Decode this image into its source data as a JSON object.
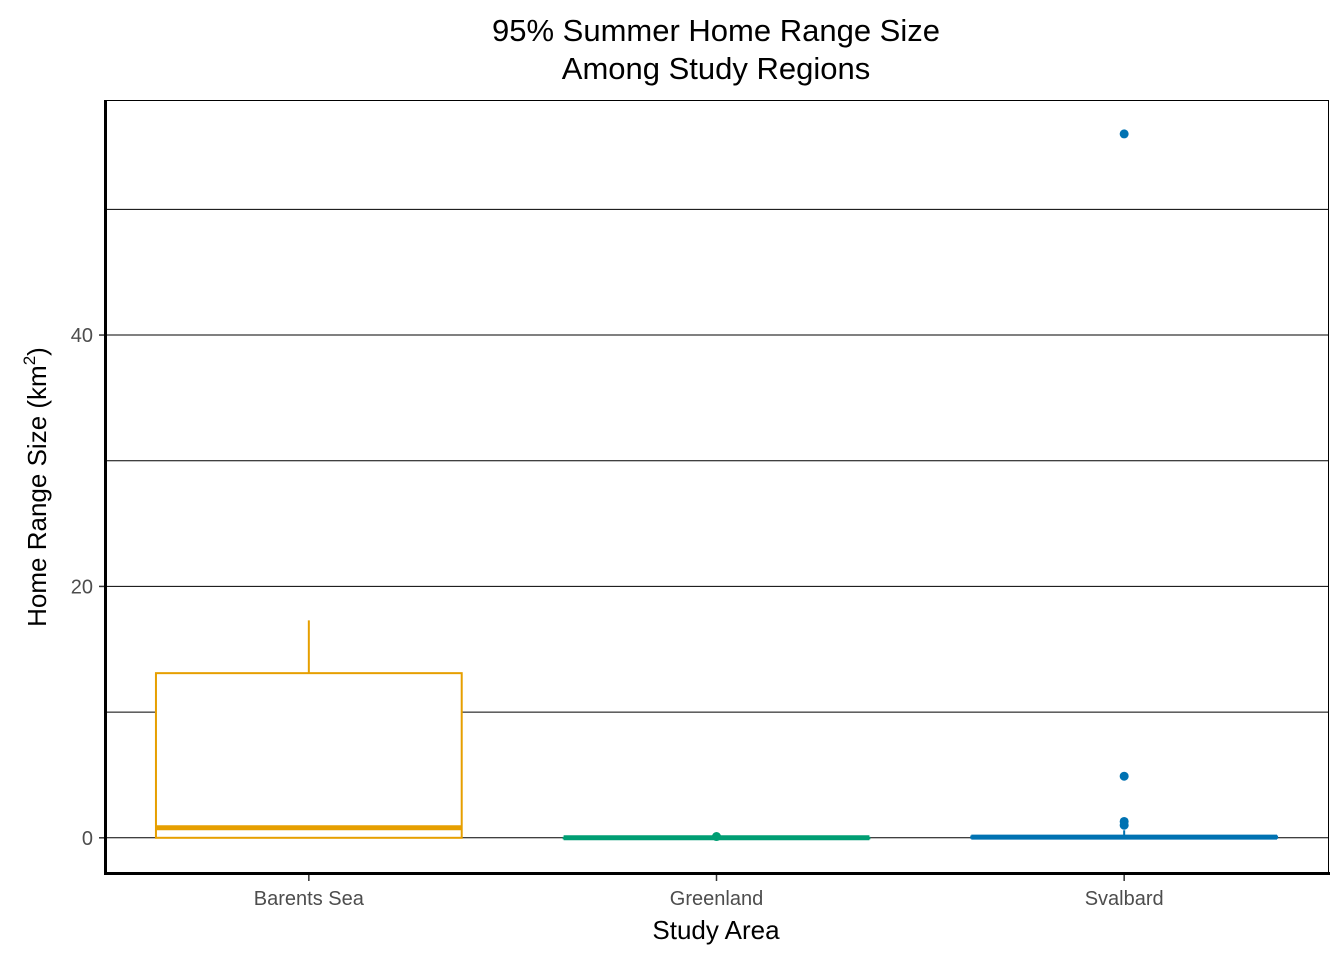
{
  "chart_data": {
    "type": "box",
    "title": [
      "95% Summer Home Range Size",
      "Among Study Regions"
    ],
    "xlabel": "Study Area",
    "ylabel": "Home Range Size (km",
    "ylabel_superscript": "2",
    "ylabel_close": ")",
    "ylim": [
      -2.8,
      58.7
    ],
    "yticks": [
      0,
      20,
      40
    ],
    "ytick_labels": [
      "0",
      "20",
      "40"
    ],
    "gridlines_y": [
      0,
      10,
      20,
      30,
      40,
      50
    ],
    "grid": "horizontal",
    "legend": "none",
    "categories": [
      "Barents Sea",
      "Greenland",
      "Svalbard"
    ],
    "boxes": [
      {
        "category": "Barents Sea",
        "color": "#E69F00",
        "min": 0.0,
        "q1": 0.0,
        "median": 0.8,
        "q3": 13.1,
        "max": 17.3,
        "outliers": []
      },
      {
        "category": "Greenland",
        "color": "#009E73",
        "min": 0.0,
        "q1": 0.0,
        "median": 0.0,
        "q3": 0.0,
        "max": 0.0,
        "outliers": [
          0.1
        ]
      },
      {
        "category": "Svalbard",
        "color": "#0072B2",
        "min": 0.0,
        "q1": 0.0,
        "median": 0.05,
        "q3": 0.1,
        "max": 0.6,
        "outliers": [
          1.0,
          1.3,
          4.9,
          56.0
        ]
      }
    ]
  }
}
